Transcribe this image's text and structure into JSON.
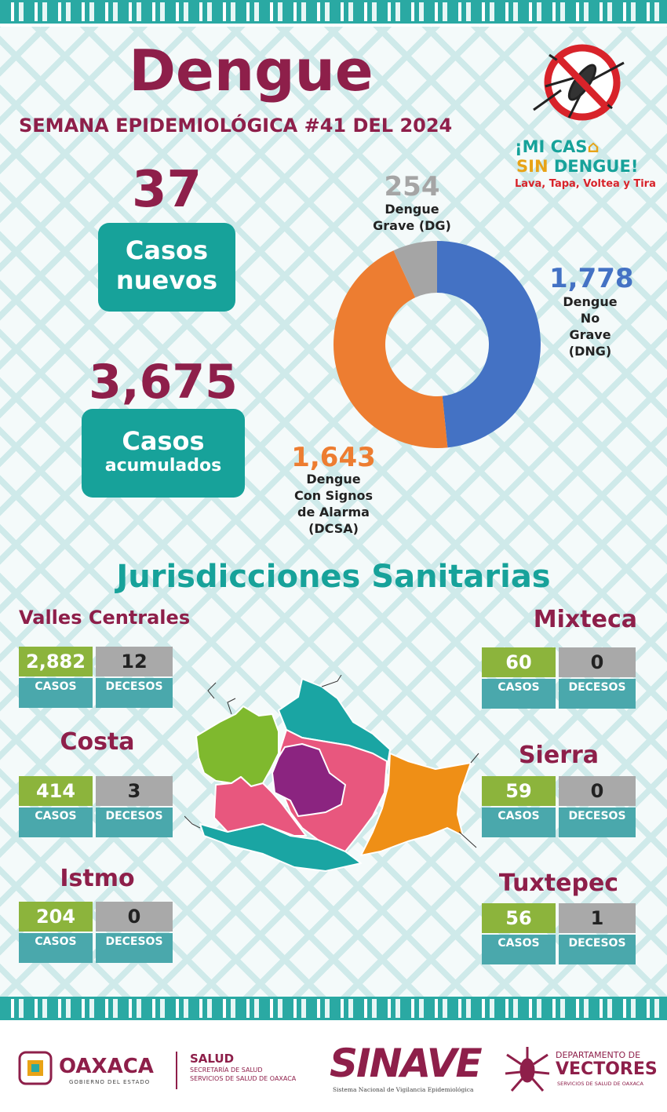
{
  "header": {
    "title": "Dengue",
    "subtitle": "SEMANA EPIDEMIOLÓGICA #41 DEL 2024"
  },
  "campaign": {
    "line1_a": "¡MI CAS",
    "line2_a": "SIN ",
    "line2_b": "DENGUE!",
    "slogan": "Lava, Tapa, Voltea y Tira"
  },
  "summary": {
    "new_cases_value": "37",
    "new_cases_label_1": "Casos",
    "new_cases_label_2": "nuevos",
    "total_cases_value": "3,675",
    "total_cases_label_1": "Casos",
    "total_cases_label_2": "acumulados"
  },
  "chart_data": {
    "type": "pie",
    "categories": [
      "Dengue No Grave (DNG)",
      "Dengue Con Signos de Alarma (DCSA)",
      "Dengue Grave (DG)"
    ],
    "values": [
      1778,
      1643,
      254
    ],
    "value_labels": [
      "1,778",
      "1,643",
      "254"
    ],
    "colors": [
      "#4472c4",
      "#ed7d31",
      "#a5a5a5"
    ],
    "label_lines": [
      [
        "Dengue",
        "No",
        "Grave",
        "(DNG)"
      ],
      [
        "Dengue",
        "Con Signos",
        "de Alarma",
        "(DCSA)"
      ],
      [
        "Dengue",
        "Grave (DG)"
      ]
    ],
    "donut": true
  },
  "jurisdictions": {
    "title": "Jurisdicciones Sanitarias",
    "cases_label": "CASOS",
    "deaths_label": "DECESOS",
    "items": [
      {
        "name": "Valles Centrales",
        "cases": "2,882",
        "deaths": "12"
      },
      {
        "name": "Costa",
        "cases": "414",
        "deaths": "3"
      },
      {
        "name": "Istmo",
        "cases": "204",
        "deaths": "0"
      },
      {
        "name": "Mixteca",
        "cases": "60",
        "deaths": "0"
      },
      {
        "name": "Sierra",
        "cases": "59",
        "deaths": "0"
      },
      {
        "name": "Tuxtepec",
        "cases": "56",
        "deaths": "1"
      }
    ],
    "map_colors": {
      "valles_centrales": "#8b2480",
      "costa": "#e8577e",
      "istmo": "#ef8f16",
      "mixteca": "#7fb92e",
      "sierra": "#e8577e",
      "tuxtepec": "#1aa5a3"
    }
  },
  "footer": {
    "oaxaca": "OAXACA",
    "oaxaca_sub": "GOBIERNO DEL ESTADO",
    "salud": "SALUD",
    "salud_sub1": "SECRETARÍA DE SALUD",
    "salud_sub2": "SERVICIOS DE SALUD DE OAXACA",
    "sinave": "SINAVE",
    "sinave_sub": "Sistema Nacional de Vigilancia Epidemiológica",
    "vectores_1": "DEPARTAMENTO DE",
    "vectores_2": "VECTORES",
    "vectores_3": "SERVICIOS DE SALUD DE OAXACA"
  }
}
